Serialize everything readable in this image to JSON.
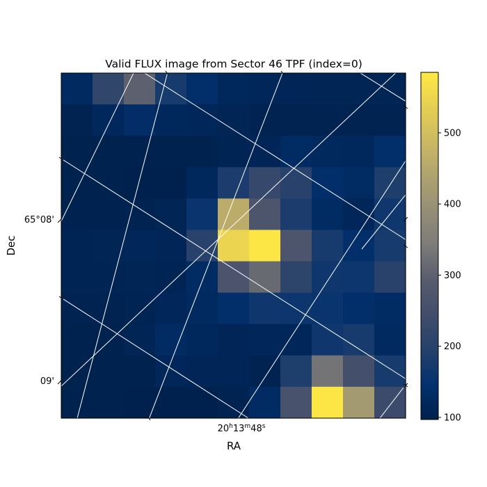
{
  "chart_data": {
    "type": "heatmap",
    "title": "Valid FLUX image from Sector 46 TPF (index=0)",
    "xlabel": "RA",
    "ylabel": "Dec",
    "colormap": "cividis",
    "vmin": 97,
    "vmax": 585,
    "rows": 11,
    "cols": 11,
    "row_order": "top-to-bottom",
    "values": [
      [
        125,
        215,
        300,
        175,
        140,
        120,
        115,
        112,
        110,
        110,
        110
      ],
      [
        105,
        120,
        135,
        120,
        115,
        110,
        105,
        105,
        105,
        105,
        105
      ],
      [
        102,
        102,
        102,
        102,
        102,
        108,
        112,
        130,
        122,
        120,
        140
      ],
      [
        102,
        102,
        100,
        100,
        120,
        180,
        225,
        200,
        140,
        130,
        185
      ],
      [
        103,
        104,
        105,
        110,
        155,
        460,
        270,
        180,
        130,
        115,
        165
      ],
      [
        108,
        110,
        115,
        112,
        200,
        545,
        580,
        270,
        175,
        140,
        175
      ],
      [
        108,
        108,
        110,
        108,
        130,
        265,
        315,
        210,
        165,
        160,
        200
      ],
      [
        105,
        105,
        108,
        115,
        125,
        140,
        165,
        160,
        155,
        140,
        130
      ],
      [
        102,
        102,
        110,
        130,
        120,
        112,
        115,
        115,
        165,
        175,
        125
      ],
      [
        102,
        102,
        102,
        115,
        112,
        112,
        105,
        185,
        330,
        250,
        175
      ],
      [
        102,
        102,
        100,
        100,
        100,
        105,
        130,
        260,
        580,
        420,
        235
      ]
    ],
    "x_tick_labels": [
      {
        "text": "20h13m48s",
        "h": "20",
        "m": "13",
        "s": "48"
      }
    ],
    "y_tick_labels": [
      "65°08'",
      "09'"
    ],
    "colorbar": {
      "ticks": [
        100,
        200,
        300,
        400,
        500
      ]
    },
    "grid": true,
    "grid_color": "#ffffff"
  }
}
